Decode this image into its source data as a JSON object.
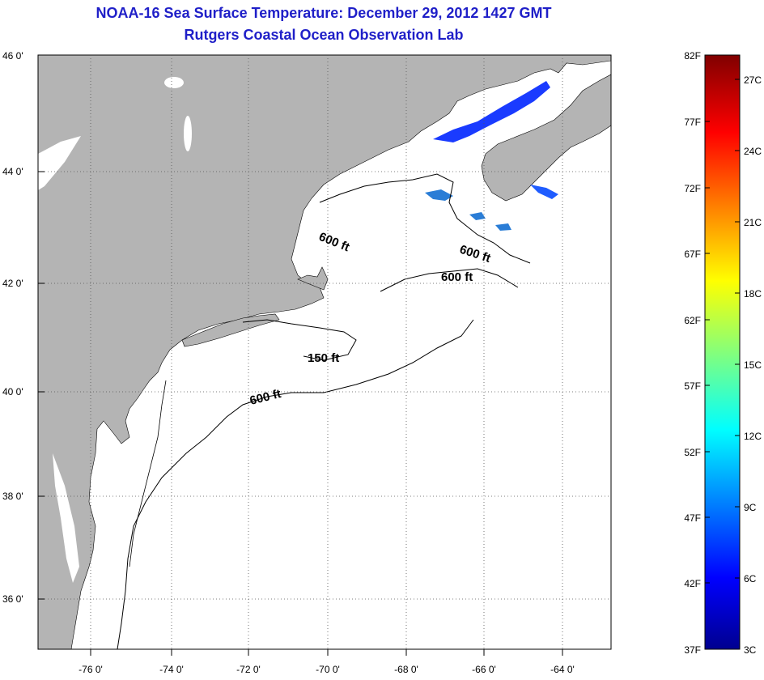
{
  "header": {
    "title": "NOAA-16 Sea Surface Temperature:  December 29, 2012 1427 GMT",
    "subtitle": "Rutgers Coastal Ocean Observation Lab"
  },
  "map": {
    "lat_labels": [
      "46 0'",
      "44 0'",
      "42 0'",
      "40 0'",
      "38 0'",
      "36 0'"
    ],
    "lon_labels": [
      "-76 0'",
      "-74 0'",
      "-72 0'",
      "-70 0'",
      "-68 0'",
      "-66 0'",
      "-64 0'"
    ],
    "contour_labels": [
      "600 ft",
      "600 ft",
      "600 ft",
      "150 ft",
      "600 ft"
    ],
    "colors": {
      "land": "#b4b4b4",
      "ocean": "#ffffff",
      "title": "#1f1fc8"
    }
  },
  "colorbar": {
    "fahrenheit_labels": [
      "82F",
      "77F",
      "72F",
      "67F",
      "62F",
      "57F",
      "52F",
      "47F",
      "42F",
      "37F"
    ],
    "celsius_labels": [
      "27C",
      "24C",
      "21C",
      "18C",
      "15C",
      "12C",
      "9C",
      "6C",
      "3C"
    ]
  }
}
